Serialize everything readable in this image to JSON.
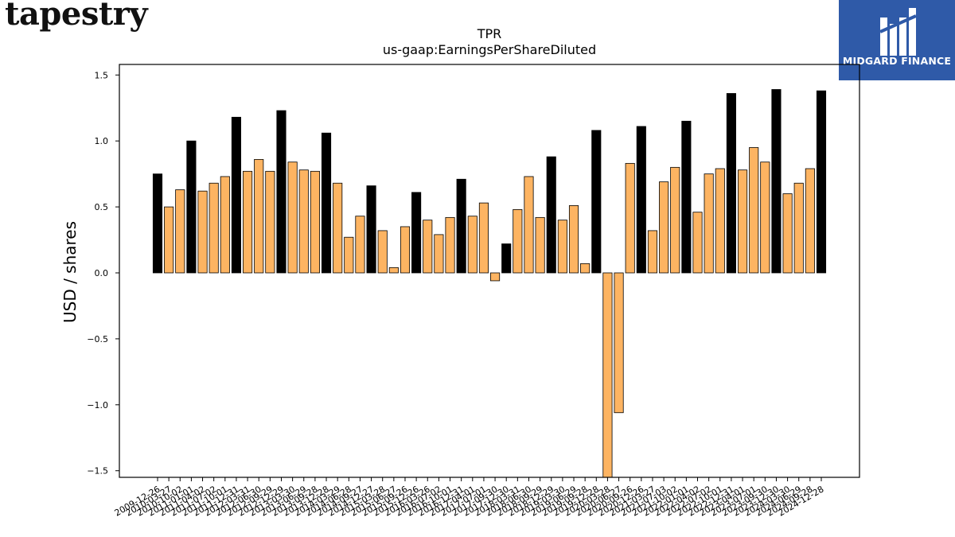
{
  "header": {
    "brand": "tapestry",
    "partner": "MIDGARD FINANCE"
  },
  "chart_data": {
    "type": "bar",
    "title": "TPR",
    "subtitle": "us-gaap:EarningsPerShareDiluted",
    "xlabel": "",
    "ylabel": "USD / shares",
    "ylim": [
      -1.55,
      1.58
    ],
    "yticks": [
      -1.5,
      -1.0,
      -0.5,
      0.0,
      0.5,
      1.0,
      1.5
    ],
    "ytick_labels": [
      "−1.5",
      "−1.0",
      "−0.5",
      "0.0",
      "0.5",
      "1.0",
      "1.5"
    ],
    "grid": false,
    "colors": {
      "annual": "#000000",
      "quarterly": "#fdb462",
      "edge": "#000000"
    },
    "period_kinds": [
      "annual",
      "quarterly",
      "quarterly",
      "annual",
      "quarterly",
      "quarterly",
      "quarterly",
      "annual",
      "quarterly",
      "quarterly",
      "quarterly",
      "annual",
      "quarterly",
      "quarterly",
      "quarterly",
      "annual",
      "quarterly",
      "quarterly",
      "quarterly",
      "annual",
      "quarterly",
      "quarterly",
      "quarterly",
      "annual",
      "quarterly",
      "quarterly",
      "quarterly",
      "annual",
      "quarterly",
      "quarterly",
      "quarterly",
      "annual",
      "quarterly",
      "quarterly",
      "quarterly",
      "annual",
      "quarterly",
      "quarterly",
      "quarterly",
      "annual",
      "quarterly",
      "quarterly",
      "quarterly",
      "annual",
      "quarterly",
      "quarterly",
      "quarterly",
      "annual",
      "quarterly",
      "quarterly",
      "quarterly",
      "annual",
      "quarterly",
      "quarterly",
      "quarterly",
      "annual",
      "quarterly",
      "quarterly",
      "quarterly",
      "annual"
    ],
    "values": [
      0.75,
      0.5,
      0.63,
      1.0,
      0.62,
      0.68,
      0.73,
      1.18,
      0.77,
      0.86,
      0.77,
      1.23,
      0.84,
      0.78,
      0.77,
      1.06,
      0.68,
      0.27,
      0.43,
      0.66,
      0.32,
      0.04,
      0.35,
      0.61,
      0.4,
      0.29,
      0.42,
      0.71,
      0.43,
      0.53,
      -0.06,
      0.22,
      0.48,
      0.73,
      0.42,
      0.88,
      0.4,
      0.51,
      0.07,
      1.08,
      -1.6,
      -1.06,
      0.83,
      1.11,
      0.32,
      0.69,
      0.8,
      1.15,
      0.46,
      0.75,
      0.79,
      1.36,
      0.78,
      0.95,
      0.84,
      1.39,
      0.6,
      0.68,
      0.79,
      1.38
    ],
    "tick_labels": [
      "2009-12-26",
      "2010-03-27",
      "2010-10-02",
      "2011-01-01",
      "2011-04-02",
      "2011-07-02",
      "2011-10-01",
      "2011-12-31",
      "2012-03-31",
      "2012-06-30",
      "2012-09-29",
      "2012-12-29",
      "2013-03-30",
      "2013-06-29",
      "2013-09-28",
      "2013-12-28",
      "2014-03-29",
      "2014-06-28",
      "2014-09-27",
      "2014-12-27",
      "2015-03-28",
      "2015-06-27",
      "2015-09-26",
      "2015-12-26",
      "2016-03-26",
      "2016-07-02",
      "2016-10-01",
      "2016-12-31",
      "2017-04-01",
      "2017-07-01",
      "2017-09-30",
      "2017-12-30",
      "2018-03-31",
      "2018-06-30",
      "2018-09-29",
      "2018-12-29",
      "2019-03-30",
      "2019-06-29",
      "2019-09-28",
      "2019-12-28",
      "2020-03-28",
      "2020-06-27",
      "2020-09-26",
      "2020-12-26",
      "2021-03-27",
      "2021-07-03",
      "2021-10-02",
      "2022-01-01",
      "2022-04-02",
      "2022-07-02",
      "2022-10-01",
      "2022-12-31",
      "2023-04-01",
      "2023-07-01",
      "2023-09-30",
      "2023-12-30",
      "2024-03-30",
      "2024-06-29",
      "2024-09-28",
      "2024-12-28"
    ]
  }
}
